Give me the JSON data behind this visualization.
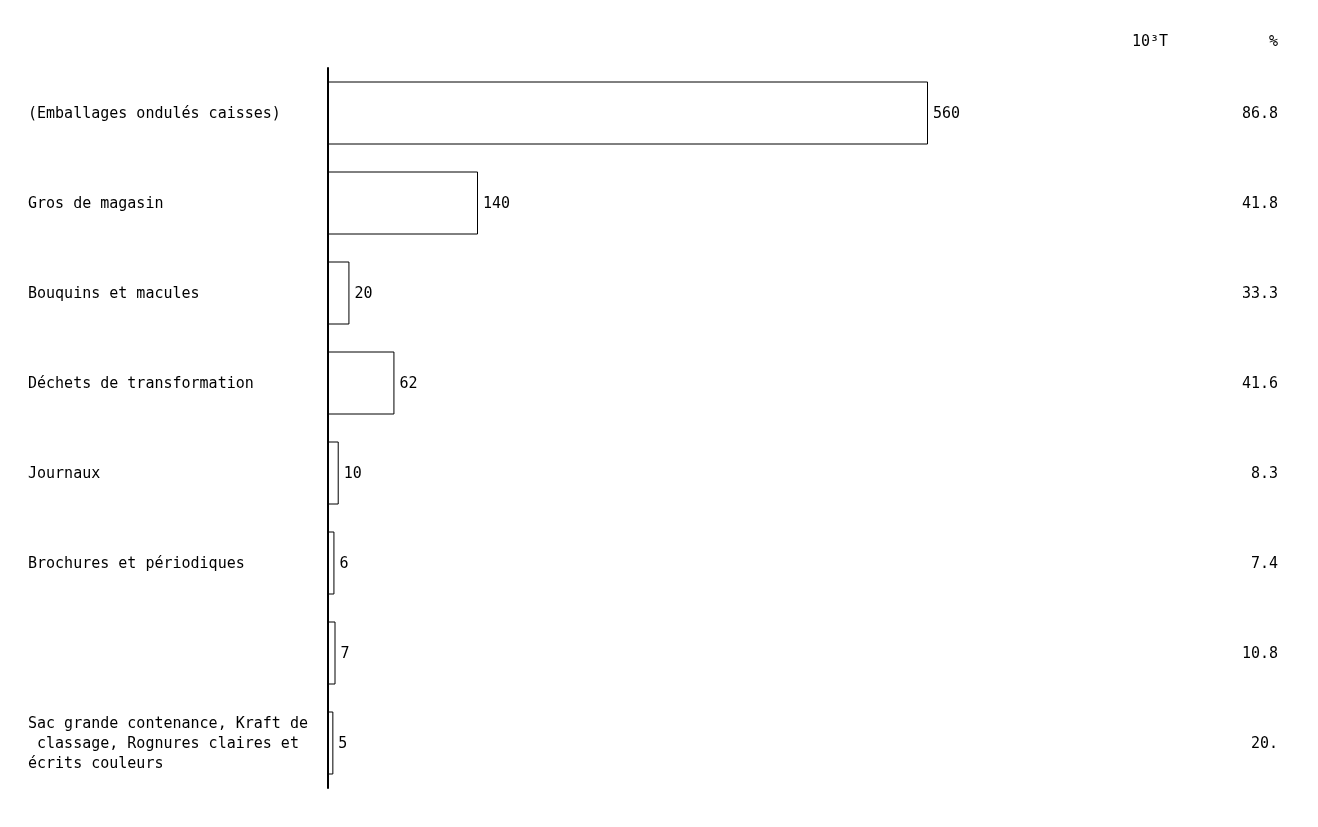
{
  "chart_data": {
    "type": "bar",
    "orientation": "horizontal",
    "categories": [
      "(Emballages ondulés caisses)",
      "Gros de magasin",
      "Bouquins et macules",
      "Déchets de transformation",
      "Journaux",
      "Brochures et périodiques",
      null,
      "Sac grande contenance, Kraft de classage, Rognures claires et écrits couleurs"
    ],
    "values": [
      560,
      140,
      20,
      62,
      10,
      6,
      7,
      5
    ],
    "color": "#ffffff",
    "data_labels": true,
    "annotations": [
      "10³T",
      "%",
      "86.8",
      "41.8",
      "33.3",
      "41.6",
      "8.3",
      "7.4",
      "10.8",
      "20."
    ]
  }
}
